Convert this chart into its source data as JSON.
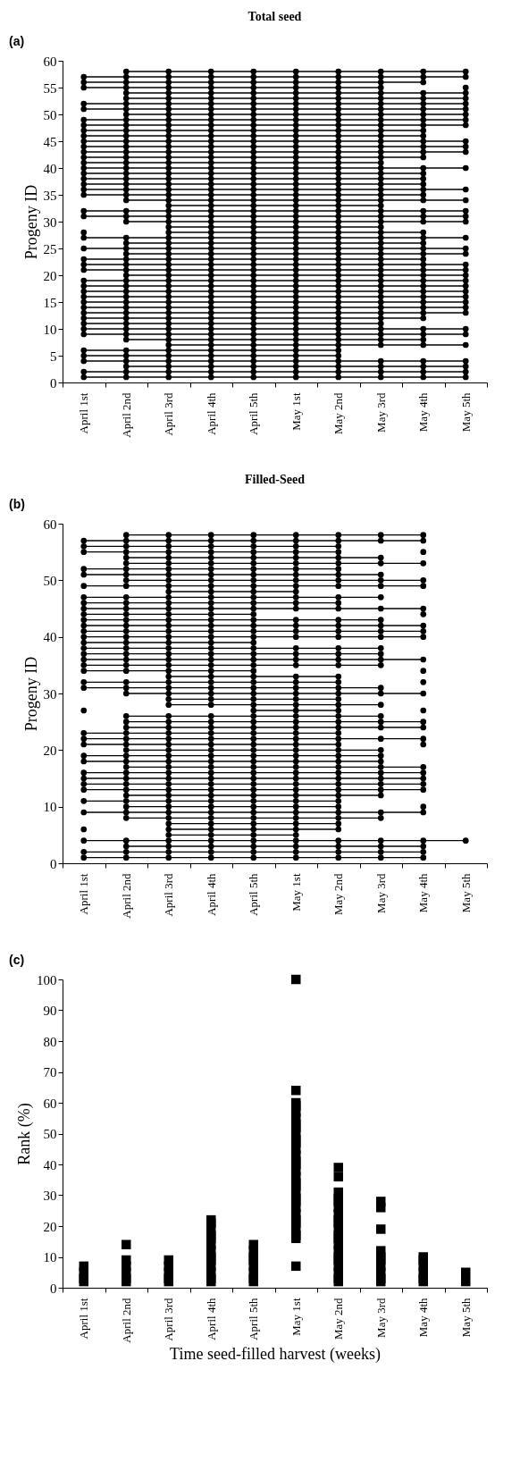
{
  "chart_data": [
    {
      "type": "line",
      "title": "Total seed",
      "ylabel": "Progeny ID",
      "annotations": [
        "(a)"
      ],
      "marker": "circle",
      "categories": [
        "April 1st",
        "April 2nd",
        "April 3rd",
        "April 4th",
        "April 5th",
        "May 1st",
        "May 2nd",
        "May 3rd",
        "May 4th",
        "May 5th"
      ],
      "ylim": [
        0,
        60
      ],
      "yticks": [
        0,
        5,
        10,
        15,
        20,
        25,
        30,
        35,
        40,
        45,
        50,
        55,
        60
      ],
      "series": [
        {
          "color": "#000000",
          "values": [
            null,
            58,
            58,
            58,
            58,
            58,
            58,
            58,
            58,
            58
          ]
        },
        {
          "color": "#000000",
          "values": [
            57,
            57,
            57,
            57,
            57,
            57,
            57,
            57,
            57,
            57
          ]
        },
        {
          "color": "#000000",
          "values": [
            56,
            56,
            56,
            56,
            56,
            56,
            56,
            56,
            56,
            null
          ]
        },
        {
          "color": "#000000",
          "values": [
            55,
            55,
            55,
            55,
            55,
            55,
            55,
            55,
            null,
            55
          ]
        },
        {
          "color": "#000000",
          "values": [
            null,
            54,
            54,
            54,
            54,
            54,
            54,
            54,
            54,
            54
          ]
        },
        {
          "color": "#000000",
          "values": [
            null,
            53,
            53,
            53,
            53,
            53,
            53,
            53,
            53,
            53
          ]
        },
        {
          "color": "#000000",
          "values": [
            52,
            52,
            52,
            52,
            52,
            52,
            52,
            52,
            52,
            52
          ]
        },
        {
          "color": "#000000",
          "values": [
            51,
            51,
            51,
            51,
            51,
            51,
            51,
            51,
            51,
            51
          ]
        },
        {
          "color": "#000000",
          "values": [
            null,
            50,
            50,
            50,
            50,
            50,
            50,
            50,
            50,
            50
          ]
        },
        {
          "color": "#000000",
          "values": [
            49,
            49,
            49,
            49,
            49,
            49,
            49,
            49,
            49,
            49
          ]
        },
        {
          "color": "#000000",
          "values": [
            48,
            48,
            48,
            48,
            48,
            48,
            48,
            48,
            48,
            48
          ]
        },
        {
          "color": "#000000",
          "values": [
            47,
            47,
            47,
            47,
            47,
            47,
            47,
            47,
            47,
            null
          ]
        },
        {
          "color": "#000000",
          "values": [
            46,
            46,
            46,
            46,
            46,
            46,
            46,
            46,
            46,
            null
          ]
        },
        {
          "color": "#000000",
          "values": [
            45,
            45,
            45,
            45,
            45,
            45,
            45,
            45,
            45,
            45
          ]
        },
        {
          "color": "#000000",
          "values": [
            44,
            44,
            44,
            44,
            44,
            44,
            44,
            44,
            44,
            44
          ]
        },
        {
          "color": "#000000",
          "values": [
            43,
            43,
            43,
            43,
            43,
            43,
            43,
            43,
            43,
            43
          ]
        },
        {
          "color": "#000000",
          "values": [
            42,
            42,
            42,
            42,
            42,
            42,
            42,
            42,
            42,
            null
          ]
        },
        {
          "color": "#000000",
          "values": [
            41,
            41,
            41,
            41,
            41,
            41,
            41,
            41,
            null,
            null
          ]
        },
        {
          "color": "#000000",
          "values": [
            40,
            40,
            40,
            40,
            40,
            40,
            40,
            40,
            40,
            40
          ]
        },
        {
          "color": "#000000",
          "values": [
            39,
            39,
            39,
            39,
            39,
            39,
            39,
            39,
            39,
            null
          ]
        },
        {
          "color": "#000000",
          "values": [
            38,
            38,
            38,
            38,
            38,
            38,
            38,
            38,
            38,
            null
          ]
        },
        {
          "color": "#000000",
          "values": [
            37,
            37,
            37,
            37,
            37,
            37,
            37,
            37,
            37,
            null
          ]
        },
        {
          "color": "#000000",
          "values": [
            36,
            36,
            36,
            36,
            36,
            36,
            36,
            36,
            36,
            36
          ]
        },
        {
          "color": "#000000",
          "values": [
            35,
            35,
            35,
            35,
            35,
            35,
            35,
            35,
            35,
            null
          ]
        },
        {
          "color": "#000000",
          "values": [
            null,
            34,
            34,
            34,
            34,
            34,
            34,
            34,
            34,
            34
          ]
        },
        {
          "color": "#000000",
          "values": [
            null,
            null,
            33,
            33,
            33,
            33,
            33,
            33,
            null,
            null
          ]
        },
        {
          "color": "#000000",
          "values": [
            32,
            32,
            32,
            32,
            32,
            32,
            32,
            32,
            32,
            32
          ]
        },
        {
          "color": "#000000",
          "values": [
            31,
            31,
            31,
            31,
            31,
            31,
            31,
            31,
            31,
            31
          ]
        },
        {
          "color": "#000000",
          "values": [
            null,
            30,
            30,
            30,
            30,
            30,
            30,
            30,
            30,
            30
          ]
        },
        {
          "color": "#000000",
          "values": [
            null,
            null,
            29,
            29,
            29,
            29,
            29,
            29,
            null,
            null
          ]
        },
        {
          "color": "#000000",
          "values": [
            28,
            null,
            28,
            28,
            28,
            28,
            28,
            28,
            28,
            null
          ]
        },
        {
          "color": "#000000",
          "values": [
            27,
            27,
            27,
            27,
            27,
            27,
            27,
            27,
            27,
            27
          ]
        },
        {
          "color": "#000000",
          "values": [
            null,
            26,
            26,
            26,
            26,
            26,
            26,
            26,
            26,
            null
          ]
        },
        {
          "color": "#000000",
          "values": [
            25,
            25,
            25,
            25,
            25,
            25,
            25,
            25,
            25,
            25
          ]
        },
        {
          "color": "#000000",
          "values": [
            null,
            24,
            24,
            24,
            24,
            24,
            24,
            24,
            24,
            24
          ]
        },
        {
          "color": "#000000",
          "values": [
            23,
            23,
            23,
            23,
            23,
            23,
            23,
            23,
            23,
            null
          ]
        },
        {
          "color": "#000000",
          "values": [
            22,
            22,
            22,
            22,
            22,
            22,
            22,
            22,
            22,
            22
          ]
        },
        {
          "color": "#000000",
          "values": [
            21,
            21,
            21,
            21,
            21,
            21,
            21,
            21,
            21,
            21
          ]
        },
        {
          "color": "#000000",
          "values": [
            null,
            20,
            20,
            20,
            20,
            20,
            20,
            20,
            20,
            20
          ]
        },
        {
          "color": "#000000",
          "values": [
            19,
            19,
            19,
            19,
            19,
            19,
            19,
            19,
            19,
            19
          ]
        },
        {
          "color": "#000000",
          "values": [
            18,
            18,
            18,
            18,
            18,
            18,
            18,
            18,
            18,
            18
          ]
        },
        {
          "color": "#000000",
          "values": [
            17,
            17,
            17,
            17,
            17,
            17,
            17,
            17,
            17,
            17
          ]
        },
        {
          "color": "#000000",
          "values": [
            16,
            16,
            16,
            16,
            16,
            16,
            16,
            16,
            16,
            16
          ]
        },
        {
          "color": "#000000",
          "values": [
            15,
            15,
            15,
            15,
            15,
            15,
            15,
            15,
            15,
            15
          ]
        },
        {
          "color": "#000000",
          "values": [
            14,
            14,
            14,
            14,
            14,
            14,
            14,
            14,
            14,
            14
          ]
        },
        {
          "color": "#000000",
          "values": [
            13,
            13,
            13,
            13,
            13,
            13,
            13,
            13,
            13,
            13
          ]
        },
        {
          "color": "#000000",
          "values": [
            12,
            12,
            12,
            12,
            12,
            12,
            12,
            12,
            12,
            null
          ]
        },
        {
          "color": "#000000",
          "values": [
            11,
            11,
            11,
            11,
            11,
            11,
            11,
            11,
            null,
            null
          ]
        },
        {
          "color": "#000000",
          "values": [
            10,
            10,
            10,
            10,
            10,
            10,
            10,
            10,
            10,
            10
          ]
        },
        {
          "color": "#000000",
          "values": [
            9,
            9,
            9,
            9,
            9,
            9,
            9,
            9,
            9,
            9
          ]
        },
        {
          "color": "#000000",
          "values": [
            null,
            8,
            8,
            8,
            8,
            8,
            8,
            8,
            8,
            null
          ]
        },
        {
          "color": "#000000",
          "values": [
            null,
            null,
            7,
            7,
            7,
            7,
            7,
            7,
            7,
            7
          ]
        },
        {
          "color": "#000000",
          "values": [
            6,
            6,
            6,
            6,
            6,
            6,
            6,
            null,
            null,
            null
          ]
        },
        {
          "color": "#000000",
          "values": [
            5,
            5,
            5,
            5,
            5,
            5,
            5,
            null,
            null,
            null
          ]
        },
        {
          "color": "#000000",
          "values": [
            4,
            4,
            4,
            4,
            4,
            4,
            4,
            4,
            4,
            4
          ]
        },
        {
          "color": "#000000",
          "values": [
            null,
            3,
            3,
            3,
            3,
            3,
            3,
            3,
            3,
            3
          ]
        },
        {
          "color": "#000000",
          "values": [
            2,
            2,
            2,
            2,
            2,
            2,
            2,
            2,
            2,
            2
          ]
        },
        {
          "color": "#000000",
          "values": [
            1,
            1,
            1,
            1,
            1,
            1,
            1,
            1,
            1,
            1
          ]
        }
      ]
    },
    {
      "type": "line",
      "title": "Filled-Seed",
      "ylabel": "Progeny ID",
      "annotations": [
        "(b)"
      ],
      "marker": "circle",
      "categories": [
        "April 1st",
        "April 2nd",
        "April 3rd",
        "April 4th",
        "April 5th",
        "May 1st",
        "May 2nd",
        "May 3rd",
        "May 4th",
        "May 5th"
      ],
      "ylim": [
        0,
        60
      ],
      "yticks": [
        0,
        10,
        20,
        30,
        40,
        50,
        60
      ],
      "series": [
        {
          "color": "#000000",
          "values": [
            null,
            58,
            58,
            58,
            58,
            58,
            58,
            58,
            58,
            null
          ]
        },
        {
          "color": "#000000",
          "values": [
            57,
            57,
            57,
            57,
            57,
            57,
            57,
            57,
            57,
            null
          ]
        },
        {
          "color": "#000000",
          "values": [
            56,
            56,
            56,
            56,
            56,
            56,
            56,
            null,
            null,
            null
          ]
        },
        {
          "color": "#000000",
          "values": [
            55,
            55,
            55,
            55,
            55,
            55,
            55,
            null,
            55,
            null
          ]
        },
        {
          "color": "#000000",
          "values": [
            null,
            54,
            54,
            54,
            54,
            54,
            54,
            54,
            null,
            null
          ]
        },
        {
          "color": "#000000",
          "values": [
            null,
            53,
            53,
            53,
            53,
            53,
            53,
            53,
            53,
            null
          ]
        },
        {
          "color": "#000000",
          "values": [
            52,
            52,
            52,
            52,
            52,
            52,
            52,
            null,
            null,
            null
          ]
        },
        {
          "color": "#000000",
          "values": [
            51,
            51,
            51,
            51,
            51,
            51,
            51,
            51,
            null,
            null
          ]
        },
        {
          "color": "#000000",
          "values": [
            null,
            50,
            50,
            50,
            50,
            50,
            50,
            50,
            50,
            null
          ]
        },
        {
          "color": "#000000",
          "values": [
            49,
            49,
            49,
            49,
            49,
            49,
            49,
            49,
            49,
            null
          ]
        },
        {
          "color": "#000000",
          "values": [
            null,
            null,
            48,
            48,
            48,
            48,
            null,
            null,
            null,
            null
          ]
        },
        {
          "color": "#000000",
          "values": [
            47,
            47,
            47,
            47,
            47,
            47,
            47,
            47,
            null,
            null
          ]
        },
        {
          "color": "#000000",
          "values": [
            46,
            46,
            46,
            46,
            46,
            46,
            46,
            null,
            null,
            null
          ]
        },
        {
          "color": "#000000",
          "values": [
            45,
            45,
            45,
            45,
            45,
            45,
            45,
            45,
            45,
            null
          ]
        },
        {
          "color": "#000000",
          "values": [
            44,
            44,
            44,
            44,
            44,
            null,
            null,
            null,
            44,
            null
          ]
        },
        {
          "color": "#000000",
          "values": [
            43,
            43,
            43,
            43,
            43,
            43,
            43,
            43,
            null,
            null
          ]
        },
        {
          "color": "#000000",
          "values": [
            42,
            42,
            42,
            42,
            42,
            42,
            42,
            42,
            42,
            null
          ]
        },
        {
          "color": "#000000",
          "values": [
            41,
            41,
            41,
            41,
            41,
            41,
            41,
            41,
            41,
            null
          ]
        },
        {
          "color": "#000000",
          "values": [
            40,
            40,
            40,
            40,
            40,
            40,
            40,
            40,
            40,
            null
          ]
        },
        {
          "color": "#000000",
          "values": [
            39,
            39,
            39,
            39,
            39,
            null,
            null,
            null,
            null,
            null
          ]
        },
        {
          "color": "#000000",
          "values": [
            38,
            38,
            38,
            38,
            38,
            38,
            38,
            38,
            null,
            null
          ]
        },
        {
          "color": "#000000",
          "values": [
            37,
            37,
            37,
            37,
            37,
            37,
            37,
            37,
            null,
            null
          ]
        },
        {
          "color": "#000000",
          "values": [
            36,
            36,
            36,
            36,
            36,
            36,
            36,
            36,
            36,
            null
          ]
        },
        {
          "color": "#000000",
          "values": [
            35,
            35,
            35,
            35,
            35,
            35,
            35,
            35,
            null,
            null
          ]
        },
        {
          "color": "#000000",
          "values": [
            34,
            34,
            34,
            34,
            34,
            null,
            null,
            null,
            34,
            null
          ]
        },
        {
          "color": "#000000",
          "values": [
            null,
            null,
            33,
            33,
            33,
            33,
            33,
            null,
            null,
            null
          ]
        },
        {
          "color": "#000000",
          "values": [
            32,
            32,
            32,
            32,
            32,
            32,
            32,
            null,
            32,
            null
          ]
        },
        {
          "color": "#000000",
          "values": [
            31,
            31,
            31,
            31,
            31,
            31,
            31,
            31,
            null,
            null
          ]
        },
        {
          "color": "#000000",
          "values": [
            null,
            30,
            30,
            30,
            30,
            30,
            30,
            30,
            30,
            null
          ]
        },
        {
          "color": "#000000",
          "values": [
            null,
            null,
            29,
            29,
            29,
            29,
            29,
            null,
            null,
            null
          ]
        },
        {
          "color": "#000000",
          "values": [
            null,
            null,
            28,
            28,
            28,
            28,
            28,
            28,
            null,
            null
          ]
        },
        {
          "color": "#000000",
          "values": [
            27,
            null,
            null,
            null,
            27,
            27,
            27,
            null,
            27,
            null
          ]
        },
        {
          "color": "#000000",
          "values": [
            null,
            26,
            26,
            26,
            26,
            26,
            26,
            26,
            null,
            null
          ]
        },
        {
          "color": "#000000",
          "values": [
            null,
            25,
            25,
            25,
            25,
            25,
            25,
            25,
            25,
            null
          ]
        },
        {
          "color": "#000000",
          "values": [
            null,
            24,
            24,
            24,
            24,
            24,
            24,
            24,
            24,
            null
          ]
        },
        {
          "color": "#000000",
          "values": [
            23,
            23,
            23,
            23,
            23,
            23,
            23,
            null,
            null,
            null
          ]
        },
        {
          "color": "#000000",
          "values": [
            22,
            22,
            22,
            22,
            22,
            22,
            22,
            22,
            22,
            null
          ]
        },
        {
          "color": "#000000",
          "values": [
            21,
            21,
            21,
            21,
            21,
            21,
            21,
            null,
            21,
            null
          ]
        },
        {
          "color": "#000000",
          "values": [
            null,
            20,
            20,
            20,
            20,
            20,
            20,
            20,
            null,
            null
          ]
        },
        {
          "color": "#000000",
          "values": [
            19,
            19,
            19,
            19,
            19,
            19,
            19,
            19,
            null,
            null
          ]
        },
        {
          "color": "#000000",
          "values": [
            18,
            18,
            18,
            18,
            18,
            18,
            18,
            18,
            null,
            null
          ]
        },
        {
          "color": "#000000",
          "values": [
            null,
            17,
            17,
            17,
            17,
            17,
            17,
            17,
            17,
            null
          ]
        },
        {
          "color": "#000000",
          "values": [
            16,
            16,
            16,
            16,
            16,
            16,
            16,
            16,
            16,
            null
          ]
        },
        {
          "color": "#000000",
          "values": [
            15,
            15,
            15,
            15,
            15,
            15,
            15,
            15,
            15,
            null
          ]
        },
        {
          "color": "#000000",
          "values": [
            14,
            14,
            14,
            14,
            14,
            14,
            14,
            14,
            14,
            null
          ]
        },
        {
          "color": "#000000",
          "values": [
            13,
            13,
            13,
            13,
            13,
            13,
            13,
            13,
            13,
            null
          ]
        },
        {
          "color": "#000000",
          "values": [
            null,
            12,
            12,
            12,
            12,
            12,
            12,
            12,
            null,
            null
          ]
        },
        {
          "color": "#000000",
          "values": [
            11,
            11,
            11,
            11,
            11,
            11,
            11,
            null,
            null,
            null
          ]
        },
        {
          "color": "#000000",
          "values": [
            null,
            10,
            10,
            10,
            10,
            10,
            10,
            null,
            10,
            null
          ]
        },
        {
          "color": "#000000",
          "values": [
            9,
            9,
            9,
            9,
            9,
            9,
            9,
            9,
            9,
            null
          ]
        },
        {
          "color": "#000000",
          "values": [
            null,
            8,
            8,
            8,
            8,
            8,
            8,
            8,
            null,
            null
          ]
        },
        {
          "color": "#000000",
          "values": [
            null,
            null,
            7,
            7,
            7,
            7,
            7,
            null,
            null,
            null
          ]
        },
        {
          "color": "#000000",
          "values": [
            6,
            null,
            6,
            6,
            6,
            6,
            6,
            null,
            null,
            null
          ]
        },
        {
          "color": "#000000",
          "values": [
            null,
            null,
            5,
            5,
            5,
            5,
            null,
            null,
            null,
            null
          ]
        },
        {
          "color": "#000000",
          "values": [
            4,
            4,
            4,
            4,
            4,
            4,
            4,
            4,
            4,
            4
          ]
        },
        {
          "color": "#000000",
          "values": [
            null,
            3,
            3,
            3,
            3,
            3,
            3,
            3,
            3,
            null
          ]
        },
        {
          "color": "#000000",
          "values": [
            2,
            2,
            2,
            2,
            2,
            2,
            2,
            2,
            2,
            null
          ]
        },
        {
          "color": "#000000",
          "values": [
            1,
            1,
            1,
            1,
            1,
            1,
            1,
            1,
            1,
            null
          ]
        }
      ]
    },
    {
      "type": "scatter",
      "xlabel": "Time seed-filled harvest (weeks)",
      "ylabel": "Rank (%)",
      "annotations": [
        "(c)"
      ],
      "marker": "square",
      "categories": [
        "April 1st",
        "April 2nd",
        "April 3rd",
        "April 4th",
        "April 5th",
        "May 1st",
        "May 2nd",
        "May 3rd",
        "May 4th",
        "May 5th"
      ],
      "ylim": [
        0,
        100
      ],
      "yticks": [
        0,
        10,
        20,
        30,
        40,
        50,
        60,
        70,
        80,
        90,
        100
      ],
      "series": [
        {
          "color": "#000000",
          "x": [
            "April 1st",
            "April 1st",
            "April 1st",
            "April 1st",
            "April 2nd",
            "April 2nd",
            "April 2nd",
            "April 2nd",
            "April 2nd",
            "April 2nd",
            "April 3rd",
            "April 3rd",
            "April 3rd",
            "April 3rd",
            "April 3rd",
            "April 4th",
            "April 4th",
            "April 4th",
            "April 4th",
            "April 4th",
            "April 4th",
            "April 4th",
            "April 4th",
            "April 4th",
            "April 4th",
            "April 4th",
            "April 4th",
            "April 4th",
            "April 5th",
            "April 5th",
            "April 5th",
            "April 5th",
            "April 5th",
            "April 5th",
            "April 5th",
            "April 5th",
            "May 1st",
            "May 1st",
            "May 1st",
            "May 1st",
            "May 1st",
            "May 1st",
            "May 1st",
            "May 1st",
            "May 1st",
            "May 1st",
            "May 1st",
            "May 1st",
            "May 1st",
            "May 1st",
            "May 1st",
            "May 1st",
            "May 1st",
            "May 1st",
            "May 1st",
            "May 1st",
            "May 1st",
            "May 1st",
            "May 1st",
            "May 1st",
            "May 1st",
            "May 1st",
            "May 1st",
            "May 1st",
            "May 1st",
            "May 1st",
            "May 2nd",
            "May 2nd",
            "May 2nd",
            "May 2nd",
            "May 2nd",
            "May 2nd",
            "May 2nd",
            "May 2nd",
            "May 2nd",
            "May 2nd",
            "May 2nd",
            "May 2nd",
            "May 2nd",
            "May 2nd",
            "May 2nd",
            "May 2nd",
            "May 2nd",
            "May 2nd",
            "May 2nd",
            "May 2nd",
            "May 3rd",
            "May 3rd",
            "May 3rd",
            "May 3rd",
            "May 3rd",
            "May 3rd",
            "May 3rd",
            "May 3rd",
            "May 3rd",
            "May 3rd",
            "May 4th",
            "May 4th",
            "May 4th",
            "May 4th",
            "May 4th",
            "May 4th",
            "May 5th",
            "May 5th"
          ],
          "values": [
            2,
            3,
            5,
            7,
            2,
            3,
            5,
            7,
            9,
            14,
            2,
            3,
            5,
            7,
            9,
            2,
            3,
            5,
            7,
            9,
            10,
            12,
            14,
            16,
            17,
            19,
            21,
            22,
            2,
            3,
            5,
            7,
            9,
            10,
            12,
            14,
            7,
            16,
            17,
            19,
            21,
            22,
            24,
            26,
            28,
            29,
            31,
            33,
            34,
            36,
            38,
            40,
            41,
            43,
            45,
            47,
            48,
            50,
            52,
            53,
            55,
            57,
            59,
            60,
            64,
            100,
            2,
            3,
            5,
            7,
            9,
            10,
            12,
            14,
            16,
            17,
            19,
            21,
            22,
            24,
            26,
            28,
            29,
            31,
            36,
            39,
            2,
            3,
            5,
            7,
            9,
            10,
            12,
            19,
            26,
            28,
            2,
            3,
            5,
            7,
            9,
            10,
            2,
            5
          ]
        }
      ]
    }
  ]
}
